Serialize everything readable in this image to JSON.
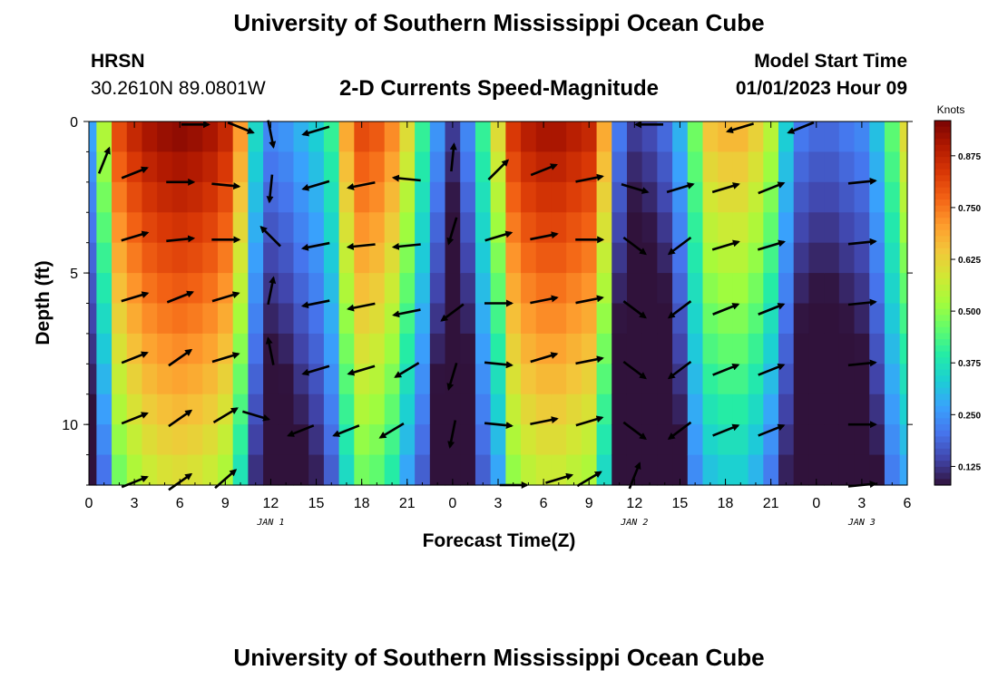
{
  "header": {
    "title": "University of Southern Mississippi Ocean Cube",
    "station": "HRSN",
    "coords": "30.2610N  89.0801W",
    "chart_title": "2-D Currents Speed-Magnitude",
    "start_label": "Model Start Time",
    "start_value": "01/01/2023 Hour 09",
    "footer_title": "University of Southern Mississippi Ocean Cube"
  },
  "colors": {
    "scale": [
      "#30123b",
      "#4145ab",
      "#4675ed",
      "#39a2fc",
      "#1bcfd4",
      "#24eca6",
      "#61fc6c",
      "#a4fc3b",
      "#d1e834",
      "#f3c63a",
      "#fe9b2d",
      "#f36315",
      "#d93806",
      "#b11901",
      "#7a0403"
    ],
    "arrow": "#000000"
  },
  "chart_data": {
    "type": "heatmap",
    "title": "2-D Currents Speed-Magnitude",
    "xlabel": "Forecast Time(Z)",
    "ylabel": "Depth (ft)",
    "x_ticks": [
      "0",
      "3",
      "6",
      "9",
      "12",
      "15",
      "18",
      "21",
      "0",
      "3",
      "6",
      "9",
      "12",
      "15",
      "18",
      "21",
      "0",
      "3",
      "6"
    ],
    "x_range_hours": [
      0,
      54
    ],
    "y_ticks": [
      "0",
      "5",
      "10"
    ],
    "y_range_ft": [
      0,
      12
    ],
    "date_labels": [
      {
        "text": "JAN 1",
        "hour": 12
      },
      {
        "text": "JAN 2",
        "hour": 36
      },
      {
        "text": "JAN 3",
        "hour": 51
      }
    ],
    "colorbar": {
      "label": "Knots",
      "min": 0.08,
      "max": 0.96,
      "ticks": [
        "0.875",
        "0.750",
        "0.625",
        "0.500",
        "0.375",
        "0.250",
        "0.125"
      ],
      "tick_values": [
        0.875,
        0.75,
        0.625,
        0.5,
        0.375,
        0.25,
        0.125
      ]
    },
    "speed_profile_hours": [
      0,
      1,
      2,
      3,
      4,
      5,
      6,
      7,
      8,
      9,
      10,
      11,
      12,
      13,
      14,
      15,
      16,
      17,
      18,
      19,
      20,
      21,
      22,
      23,
      24,
      25,
      26,
      27,
      28,
      29,
      30,
      31,
      32,
      33,
      34,
      35,
      36,
      37,
      38,
      39,
      40,
      41,
      42,
      43,
      44,
      45,
      46,
      47,
      48,
      49,
      50,
      51,
      52,
      53,
      54
    ],
    "surface_speed_knots": [
      0.28,
      0.55,
      0.82,
      0.88,
      0.92,
      0.94,
      0.95,
      0.94,
      0.92,
      0.88,
      0.72,
      0.36,
      0.24,
      0.26,
      0.3,
      0.34,
      0.42,
      0.7,
      0.82,
      0.8,
      0.74,
      0.62,
      0.42,
      0.26,
      0.14,
      0.24,
      0.42,
      0.62,
      0.85,
      0.9,
      0.92,
      0.92,
      0.9,
      0.88,
      0.7,
      0.22,
      0.14,
      0.16,
      0.2,
      0.3,
      0.48,
      0.66,
      0.68,
      0.68,
      0.64,
      0.56,
      0.34,
      0.22,
      0.2,
      0.2,
      0.22,
      0.24,
      0.32,
      0.46,
      0.62
    ],
    "depth_decay_knots_per_ft": 0.03,
    "vectors": [
      {
        "hour": 1,
        "depth_ft": 1.3,
        "u": 0.4,
        "v": 1
      },
      {
        "hour": 3,
        "depth_ft": 1.7,
        "u": 1,
        "v": 0.4
      },
      {
        "hour": 6,
        "depth_ft": 2,
        "u": 1,
        "v": 0
      },
      {
        "hour": 9,
        "depth_ft": 2.1,
        "u": 1,
        "v": -0.1
      },
      {
        "hour": 12,
        "depth_ft": 2.2,
        "u": -0.1,
        "v": -1
      },
      {
        "hour": 15,
        "depth_ft": 2.1,
        "u": -1,
        "v": -0.3
      },
      {
        "hour": 18,
        "depth_ft": 2.1,
        "u": -1,
        "v": -0.2
      },
      {
        "hour": 21,
        "depth_ft": 1.9,
        "u": -1,
        "v": 0.1
      },
      {
        "hour": 24,
        "depth_ft": 1.2,
        "u": 0.1,
        "v": 1
      },
      {
        "hour": 27,
        "depth_ft": 1.6,
        "u": 0.7,
        "v": 0.7
      },
      {
        "hour": 30,
        "depth_ft": 1.6,
        "u": 1,
        "v": 0.4
      },
      {
        "hour": 33,
        "depth_ft": 1.9,
        "u": 1,
        "v": 0.2
      },
      {
        "hour": 36,
        "depth_ft": 2.2,
        "u": 1,
        "v": -0.3
      },
      {
        "hour": 39,
        "depth_ft": 2.2,
        "u": 1,
        "v": 0.3
      },
      {
        "hour": 42,
        "depth_ft": 2.2,
        "u": 1,
        "v": 0.3
      },
      {
        "hour": 45,
        "depth_ft": 2.2,
        "u": 1,
        "v": 0.4
      },
      {
        "hour": 51,
        "depth_ft": 2,
        "u": 1,
        "v": 0.1
      },
      {
        "hour": 3,
        "depth_ft": 3.8,
        "u": 1,
        "v": 0.3
      },
      {
        "hour": 6,
        "depth_ft": 3.9,
        "u": 1,
        "v": 0.1
      },
      {
        "hour": 9,
        "depth_ft": 3.9,
        "u": 1,
        "v": 0
      },
      {
        "hour": 12,
        "depth_ft": 3.8,
        "u": -0.7,
        "v": 0.7
      },
      {
        "hour": 15,
        "depth_ft": 4.1,
        "u": -1,
        "v": -0.2
      },
      {
        "hour": 18,
        "depth_ft": 4.1,
        "u": -1,
        "v": -0.1
      },
      {
        "hour": 21,
        "depth_ft": 4.1,
        "u": -1,
        "v": -0.1
      },
      {
        "hour": 24,
        "depth_ft": 3.6,
        "u": -0.3,
        "v": -1
      },
      {
        "hour": 27,
        "depth_ft": 3.8,
        "u": 1,
        "v": 0.3
      },
      {
        "hour": 30,
        "depth_ft": 3.8,
        "u": 1,
        "v": 0.2
      },
      {
        "hour": 33,
        "depth_ft": 3.9,
        "u": 1,
        "v": 0
      },
      {
        "hour": 36,
        "depth_ft": 4.1,
        "u": 0.8,
        "v": -0.6
      },
      {
        "hour": 39,
        "depth_ft": 4.1,
        "u": -0.8,
        "v": -0.6
      },
      {
        "hour": 42,
        "depth_ft": 4.1,
        "u": 1,
        "v": 0.3
      },
      {
        "hour": 45,
        "depth_ft": 4.1,
        "u": 1,
        "v": 0.3
      },
      {
        "hour": 51,
        "depth_ft": 4,
        "u": 1,
        "v": 0.1
      },
      {
        "hour": 3,
        "depth_ft": 5.8,
        "u": 1,
        "v": 0.3
      },
      {
        "hour": 6,
        "depth_ft": 5.8,
        "u": 1,
        "v": 0.4
      },
      {
        "hour": 9,
        "depth_ft": 5.8,
        "u": 1,
        "v": 0.3
      },
      {
        "hour": 12,
        "depth_ft": 5.6,
        "u": 0.2,
        "v": 1
      },
      {
        "hour": 15,
        "depth_ft": 6,
        "u": -1,
        "v": -0.2
      },
      {
        "hour": 18,
        "depth_ft": 6.1,
        "u": -1,
        "v": -0.2
      },
      {
        "hour": 21,
        "depth_ft": 6.3,
        "u": -1,
        "v": -0.2
      },
      {
        "hour": 24,
        "depth_ft": 6.3,
        "u": -0.8,
        "v": -0.6
      },
      {
        "hour": 27,
        "depth_ft": 6,
        "u": 1,
        "v": 0
      },
      {
        "hour": 30,
        "depth_ft": 5.9,
        "u": 1,
        "v": 0.2
      },
      {
        "hour": 33,
        "depth_ft": 5.9,
        "u": 1,
        "v": 0.2
      },
      {
        "hour": 36,
        "depth_ft": 6.2,
        "u": 0.8,
        "v": -0.6
      },
      {
        "hour": 39,
        "depth_ft": 6.2,
        "u": -0.8,
        "v": -0.6
      },
      {
        "hour": 42,
        "depth_ft": 6.2,
        "u": 1,
        "v": 0.4
      },
      {
        "hour": 45,
        "depth_ft": 6.2,
        "u": 1,
        "v": 0.4
      },
      {
        "hour": 51,
        "depth_ft": 6,
        "u": 1,
        "v": 0.1
      },
      {
        "hour": 3,
        "depth_ft": 7.8,
        "u": 1,
        "v": 0.4
      },
      {
        "hour": 6,
        "depth_ft": 7.8,
        "u": 1,
        "v": 0.7
      },
      {
        "hour": 9,
        "depth_ft": 7.8,
        "u": 1,
        "v": 0.3
      },
      {
        "hour": 12,
        "depth_ft": 7.6,
        "u": -0.2,
        "v": 1
      },
      {
        "hour": 15,
        "depth_ft": 8.2,
        "u": -1,
        "v": -0.3
      },
      {
        "hour": 18,
        "depth_ft": 8.2,
        "u": -1,
        "v": -0.3
      },
      {
        "hour": 21,
        "depth_ft": 8.2,
        "u": -1,
        "v": -0.6
      },
      {
        "hour": 24,
        "depth_ft": 8.4,
        "u": -0.3,
        "v": -1
      },
      {
        "hour": 27,
        "depth_ft": 8,
        "u": 1,
        "v": -0.1
      },
      {
        "hour": 30,
        "depth_ft": 7.8,
        "u": 1,
        "v": 0.3
      },
      {
        "hour": 33,
        "depth_ft": 7.9,
        "u": 1,
        "v": 0.2
      },
      {
        "hour": 36,
        "depth_ft": 8.2,
        "u": 0.8,
        "v": -0.6
      },
      {
        "hour": 39,
        "depth_ft": 8.2,
        "u": -0.8,
        "v": -0.6
      },
      {
        "hour": 42,
        "depth_ft": 8.2,
        "u": 1,
        "v": 0.4
      },
      {
        "hour": 45,
        "depth_ft": 8.2,
        "u": 1,
        "v": 0.4
      },
      {
        "hour": 51,
        "depth_ft": 8,
        "u": 1,
        "v": 0.1
      },
      {
        "hour": 3,
        "depth_ft": 9.8,
        "u": 1,
        "v": 0.4
      },
      {
        "hour": 6,
        "depth_ft": 9.8,
        "u": 1,
        "v": 0.7
      },
      {
        "hour": 9,
        "depth_ft": 9.7,
        "u": 1,
        "v": 0.6
      },
      {
        "hour": 11,
        "depth_ft": 9.7,
        "u": 1,
        "v": -0.3
      },
      {
        "hour": 14,
        "depth_ft": 10.2,
        "u": -1,
        "v": -0.4
      },
      {
        "hour": 17,
        "depth_ft": 10.2,
        "u": -1,
        "v": -0.4
      },
      {
        "hour": 20,
        "depth_ft": 10.2,
        "u": -1,
        "v": -0.6
      },
      {
        "hour": 24,
        "depth_ft": 10.3,
        "u": -0.2,
        "v": -1
      },
      {
        "hour": 27,
        "depth_ft": 10,
        "u": 1,
        "v": -0.1
      },
      {
        "hour": 30,
        "depth_ft": 9.9,
        "u": 1,
        "v": 0.2
      },
      {
        "hour": 33,
        "depth_ft": 9.9,
        "u": 1,
        "v": 0.3
      },
      {
        "hour": 36,
        "depth_ft": 10.2,
        "u": 0.8,
        "v": -0.6
      },
      {
        "hour": 39,
        "depth_ft": 10.2,
        "u": -0.8,
        "v": -0.6
      },
      {
        "hour": 42,
        "depth_ft": 10.2,
        "u": 1,
        "v": 0.4
      },
      {
        "hour": 45,
        "depth_ft": 10.2,
        "u": 1,
        "v": 0.4
      },
      {
        "hour": 51,
        "depth_ft": 10,
        "u": 1,
        "v": 0
      },
      {
        "hour": 3,
        "depth_ft": 11.9,
        "u": 1,
        "v": 0.4
      },
      {
        "hour": 6,
        "depth_ft": 11.9,
        "u": 1,
        "v": 0.7
      },
      {
        "hour": 9,
        "depth_ft": 11.8,
        "u": 0.8,
        "v": 0.7
      },
      {
        "hour": 28,
        "depth_ft": 12,
        "u": 1,
        "v": 0
      },
      {
        "hour": 31,
        "depth_ft": 11.8,
        "u": 1,
        "v": 0.3
      },
      {
        "hour": 33,
        "depth_ft": 11.8,
        "u": 1,
        "v": 0.6
      },
      {
        "hour": 36,
        "depth_ft": 11.7,
        "u": 0.4,
        "v": 1
      },
      {
        "hour": 51,
        "depth_ft": 12,
        "u": 1,
        "v": 0.1
      },
      {
        "hour": 7,
        "depth_ft": 0.1,
        "u": 1,
        "v": 0
      },
      {
        "hour": 10,
        "depth_ft": 0.2,
        "u": 1,
        "v": -0.4
      },
      {
        "hour": 12,
        "depth_ft": 0.4,
        "u": 0.2,
        "v": -1
      },
      {
        "hour": 15,
        "depth_ft": 0.3,
        "u": -1,
        "v": -0.3
      },
      {
        "hour": 37,
        "depth_ft": 0.1,
        "u": -1,
        "v": 0
      },
      {
        "hour": 43,
        "depth_ft": 0.2,
        "u": -1,
        "v": -0.3
      },
      {
        "hour": 47,
        "depth_ft": 0.2,
        "u": -1,
        "v": -0.4
      }
    ]
  }
}
